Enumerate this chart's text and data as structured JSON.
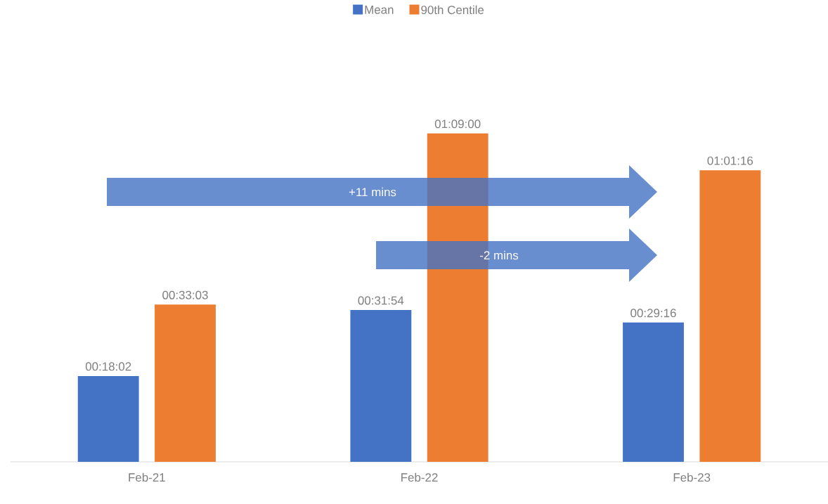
{
  "chart_data": {
    "type": "bar",
    "categories": [
      "Feb-21",
      "Feb-22",
      "Feb-23"
    ],
    "series": [
      {
        "name": "Mean",
        "color": "#4472c4",
        "values": [
          1082,
          1914,
          1756
        ],
        "value_labels": [
          "00:18:02",
          "00:31:54",
          "00:29:16"
        ]
      },
      {
        "name": "90th Centile",
        "color": "#ed7d31",
        "values": [
          1983,
          4140,
          3676
        ],
        "value_labels": [
          "00:33:03",
          "01:09:00",
          "01:01:16"
        ]
      }
    ],
    "legend": "top",
    "annotations": [
      "+11 mins",
      "-2 mins"
    ]
  }
}
